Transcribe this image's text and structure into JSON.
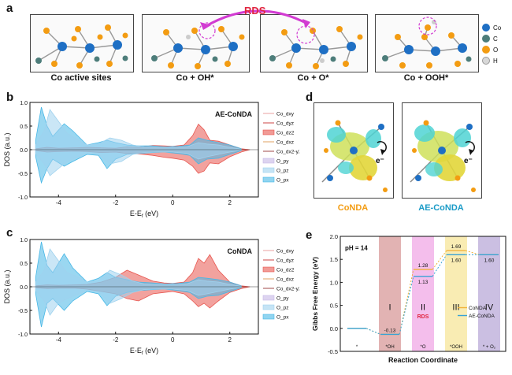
{
  "panels": {
    "a": "a",
    "b": "b",
    "c": "c",
    "d": "d",
    "e": "e"
  },
  "panel_a": {
    "captions": [
      "Co active sites",
      "Co + OH*",
      "Co + O*",
      "Co + OOH*"
    ],
    "rds_label": "RDS",
    "legend": [
      {
        "label": "Co",
        "color": "#1e6fc4"
      },
      {
        "label": "C",
        "color": "#4d7d7a"
      },
      {
        "label": "O",
        "color": "#f39c12"
      },
      {
        "label": "H",
        "color": "#d8d8d8"
      }
    ]
  },
  "panel_d": {
    "labels": [
      "CoNDA",
      "AE-CoNDA"
    ],
    "label_colors": [
      "#f39c12",
      "#1a9bc7"
    ],
    "electron": "e⁻"
  },
  "dos_legend": [
    "Co_dxy",
    "Co_dyz",
    "Co_dz2",
    "Co_dxz",
    "Co_dx2-y2",
    "O_py",
    "O_pz",
    "O_px"
  ],
  "chart_data": [
    {
      "type": "area",
      "title": "AE-CoNDA",
      "xlabel": "E-E",
      "xlabel_sub": "f",
      "xlabel_unit": " (eV)",
      "ylabel": "DOS (a.u.)",
      "xlim": [
        -5,
        3
      ],
      "ylim": [
        -1.0,
        1.0
      ],
      "xticks": [
        -4,
        -2,
        0,
        2
      ],
      "yticks": [
        "1.0",
        "0.5",
        "0.0",
        "-0.5",
        "-1.0"
      ],
      "series": [
        {
          "name": "Co_dz2",
          "x": [
            -4.8,
            -4.4,
            -4.0,
            -3.4,
            -3.0,
            -2.5,
            -2.0,
            -1.6,
            -1.2,
            -0.7,
            -0.3,
            0.0,
            0.4,
            0.7,
            0.9,
            1.1,
            1.3,
            1.6,
            2.0,
            2.4,
            2.7
          ],
          "y": [
            0.02,
            0.05,
            0.03,
            0.04,
            0.05,
            0.04,
            0.03,
            0.06,
            0.05,
            0.09,
            0.08,
            0.07,
            0.1,
            0.3,
            0.54,
            0.42,
            0.2,
            0.18,
            0.1,
            0.02,
            0.0
          ],
          "y_neg": [
            -0.02,
            -0.05,
            -0.04,
            -0.03,
            -0.04,
            -0.06,
            -0.05,
            -0.08,
            -0.09,
            -0.12,
            -0.16,
            -0.18,
            -0.22,
            -0.35,
            -0.5,
            -0.45,
            -0.28,
            -0.3,
            -0.15,
            -0.05,
            0.0
          ]
        },
        {
          "name": "O_px",
          "x": [
            -4.8,
            -4.6,
            -4.4,
            -4.2,
            -3.8,
            -3.5,
            -3.0,
            -2.6,
            -2.3,
            -2.0,
            -1.6,
            -1.2,
            -0.7,
            -0.3,
            0.2,
            0.6,
            0.9,
            1.2,
            1.6,
            2.0,
            2.4
          ],
          "y": [
            0.2,
            0.9,
            0.5,
            0.28,
            0.55,
            0.4,
            0.1,
            0.15,
            0.2,
            0.15,
            0.1,
            0.08,
            0.08,
            0.06,
            0.07,
            0.1,
            0.25,
            0.2,
            0.15,
            0.1,
            0.02
          ],
          "y_neg": [
            -0.15,
            -0.7,
            -0.4,
            -0.2,
            -0.35,
            -0.25,
            -0.1,
            -0.12,
            -0.4,
            -0.2,
            -0.1,
            -0.08,
            -0.06,
            -0.05,
            -0.08,
            -0.12,
            -0.3,
            -0.2,
            -0.18,
            -0.1,
            -0.02
          ]
        },
        {
          "name": "O_pz",
          "x": [
            -4.8,
            -4.5,
            -4.3,
            -4.0,
            -3.7,
            -3.3,
            -3.0,
            -2.6,
            -2.2,
            -1.8,
            -1.4,
            -1.0,
            -0.5,
            0.0,
            0.5,
            0.9,
            1.2,
            1.6,
            2.0,
            2.4
          ],
          "y": [
            0.1,
            0.4,
            0.85,
            0.6,
            0.35,
            0.2,
            0.1,
            0.12,
            0.25,
            0.2,
            0.1,
            0.06,
            0.05,
            0.05,
            0.06,
            0.15,
            0.12,
            0.1,
            0.05,
            0.01
          ],
          "y_neg": [
            -0.08,
            -0.3,
            -0.55,
            -0.4,
            -0.25,
            -0.15,
            -0.08,
            -0.1,
            -0.3,
            -0.25,
            -0.1,
            -0.06,
            -0.05,
            -0.05,
            -0.08,
            -0.2,
            -0.15,
            -0.1,
            -0.05,
            -0.01
          ]
        }
      ]
    },
    {
      "type": "area",
      "title": "CoNDA",
      "xlabel": "E-E",
      "xlabel_sub": "f",
      "xlabel_unit": " (eV)",
      "ylabel": "DOS (a.u.)",
      "xlim": [
        -5,
        3
      ],
      "ylim": [
        -1.0,
        1.0
      ],
      "xticks": [
        -4,
        -2,
        0,
        2
      ],
      "yticks": [
        "1.0",
        "0.5",
        "0.0",
        "-0.5",
        "-1.0"
      ],
      "series": [
        {
          "name": "Co_dz2",
          "x": [
            -4.8,
            -4.4,
            -4.0,
            -3.4,
            -3.0,
            -2.5,
            -2.0,
            -1.6,
            -1.2,
            -0.7,
            -0.3,
            0.0,
            0.4,
            0.7,
            0.9,
            1.1,
            1.3,
            1.6,
            2.0,
            2.4,
            2.7
          ],
          "y": [
            0.02,
            0.04,
            0.03,
            0.04,
            0.05,
            0.1,
            0.2,
            0.35,
            0.25,
            0.12,
            0.08,
            0.07,
            0.1,
            0.3,
            0.6,
            0.5,
            0.68,
            0.35,
            0.1,
            0.02,
            0.0
          ],
          "y_neg": [
            -0.02,
            -0.04,
            -0.03,
            -0.03,
            -0.05,
            -0.1,
            -0.15,
            -0.25,
            -0.3,
            -0.15,
            -0.12,
            -0.1,
            -0.15,
            -0.3,
            -0.42,
            -0.35,
            -0.45,
            -0.3,
            -0.12,
            -0.04,
            0.0
          ]
        },
        {
          "name": "O_px",
          "x": [
            -4.8,
            -4.6,
            -4.4,
            -4.2,
            -3.8,
            -3.5,
            -3.0,
            -2.6,
            -2.3,
            -2.0,
            -1.6,
            -1.2,
            -0.7,
            -0.3,
            0.2,
            0.6,
            0.9,
            1.2,
            1.6,
            2.0,
            2.4
          ],
          "y": [
            0.2,
            0.95,
            0.45,
            0.3,
            0.7,
            0.4,
            0.1,
            0.18,
            0.3,
            0.2,
            0.15,
            0.1,
            0.08,
            0.06,
            0.07,
            0.1,
            0.2,
            0.18,
            0.15,
            0.1,
            0.02
          ],
          "y_neg": [
            -0.15,
            -0.85,
            -0.35,
            -0.25,
            -0.5,
            -0.3,
            -0.1,
            -0.15,
            -0.4,
            -0.2,
            -0.12,
            -0.08,
            -0.06,
            -0.05,
            -0.08,
            -0.12,
            -0.25,
            -0.2,
            -0.18,
            -0.1,
            -0.02
          ]
        },
        {
          "name": "O_pz",
          "x": [
            -4.8,
            -4.5,
            -4.3,
            -4.0,
            -3.7,
            -3.3,
            -3.0,
            -2.6,
            -2.2,
            -1.8,
            -1.4,
            -1.0,
            -0.5,
            0.0,
            0.5,
            0.9,
            1.2,
            1.6,
            2.0,
            2.4
          ],
          "y": [
            0.1,
            0.35,
            0.8,
            0.55,
            0.3,
            0.2,
            0.1,
            0.12,
            0.35,
            0.25,
            0.12,
            0.06,
            0.05,
            0.05,
            0.06,
            0.15,
            0.12,
            0.1,
            0.05,
            0.01
          ],
          "y_neg": [
            -0.08,
            -0.3,
            -0.6,
            -0.35,
            -0.25,
            -0.15,
            -0.08,
            -0.1,
            -0.35,
            -0.25,
            -0.12,
            -0.06,
            -0.05,
            -0.05,
            -0.08,
            -0.18,
            -0.15,
            -0.1,
            -0.05,
            -0.01
          ]
        }
      ]
    },
    {
      "type": "line",
      "title": "",
      "annotation": "pH = 14",
      "xlabel": "Reaction Coordinate",
      "ylabel": "Gibbs Free Energy (eV)",
      "ylim": [
        -0.5,
        2.0
      ],
      "yticks": [
        "2.0",
        "1.5",
        "1.0",
        "0.5",
        "0.0",
        "-0.5"
      ],
      "categories": [
        "*",
        "*OH",
        "*O",
        "*OOH",
        "* + O₂"
      ],
      "steps": [
        "I",
        "II",
        "III",
        "IV"
      ],
      "step_colors": [
        "#d89a9a",
        "#f0a8e6",
        "#f7e59a",
        "#b9a9d8"
      ],
      "rds_label": "RDS",
      "series": [
        {
          "name": "CoNDA",
          "color": "#f1b23a",
          "values": [
            0.0,
            -0.13,
            1.28,
            1.69,
            1.6
          ]
        },
        {
          "name": "AE-CoNDA",
          "color": "#38a3d6",
          "values": [
            0.0,
            -0.13,
            1.13,
            1.6,
            1.6
          ]
        }
      ],
      "value_labels": [
        "-0.13",
        "1.28",
        "1.13",
        "1.69",
        "1.60",
        "1.60"
      ]
    }
  ]
}
